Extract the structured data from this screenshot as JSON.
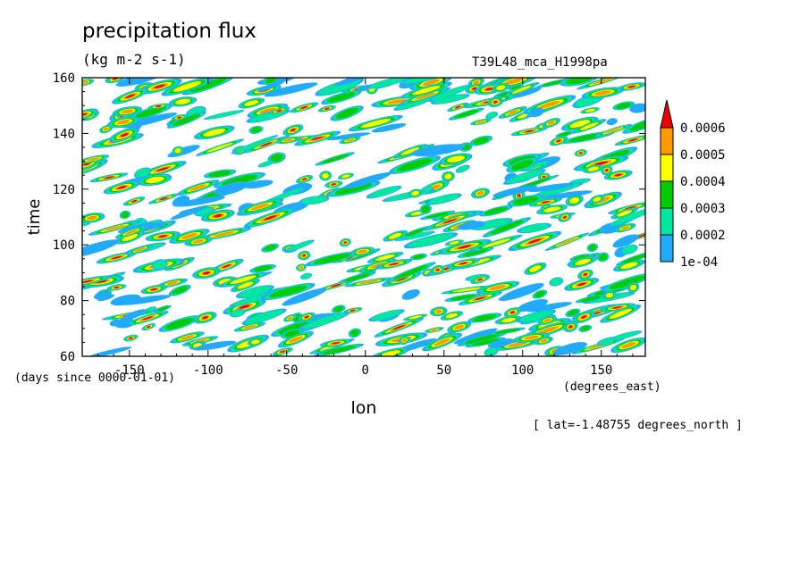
{
  "chart_data": {
    "type": "heatmap",
    "title": "precipitation flux",
    "units": "(kg m-2 s-1)",
    "run_label": "T39L48_mca_H1998pa",
    "xlabel": "lon",
    "ylabel": "time",
    "x_units_label": "(degrees_east)",
    "y_units_label": "(days since 0000-01-01)",
    "annotation": "[ lat=-1.48755 degrees_north ]",
    "xlim": [
      -180,
      178
    ],
    "ylim": [
      60,
      160
    ],
    "x_ticks": [
      -150,
      -100,
      -50,
      0,
      50,
      100,
      150
    ],
    "x_tick_labels": [
      "-150",
      "-100",
      "-50",
      "0",
      "50",
      "100",
      "150"
    ],
    "y_ticks": [
      60,
      80,
      100,
      120,
      140,
      160
    ],
    "y_tick_labels": [
      "60",
      "80",
      "100",
      "120",
      "140",
      "160"
    ],
    "colorbar": {
      "levels": [
        0.0001,
        0.0002,
        0.0003,
        0.0004,
        0.0005,
        0.0006
      ],
      "labels": [
        "1e-04",
        "0.0002",
        "0.0003",
        "0.0004",
        "0.0005",
        "0.0006"
      ],
      "colors": [
        "#22aaff",
        "#00e8a0",
        "#00cc00",
        "#ffff00",
        "#ff9900",
        "#ee0000"
      ],
      "extend": "max"
    },
    "pattern": "eastward-propagating precipitation streaks; 1e-04 and higher shaded"
  }
}
